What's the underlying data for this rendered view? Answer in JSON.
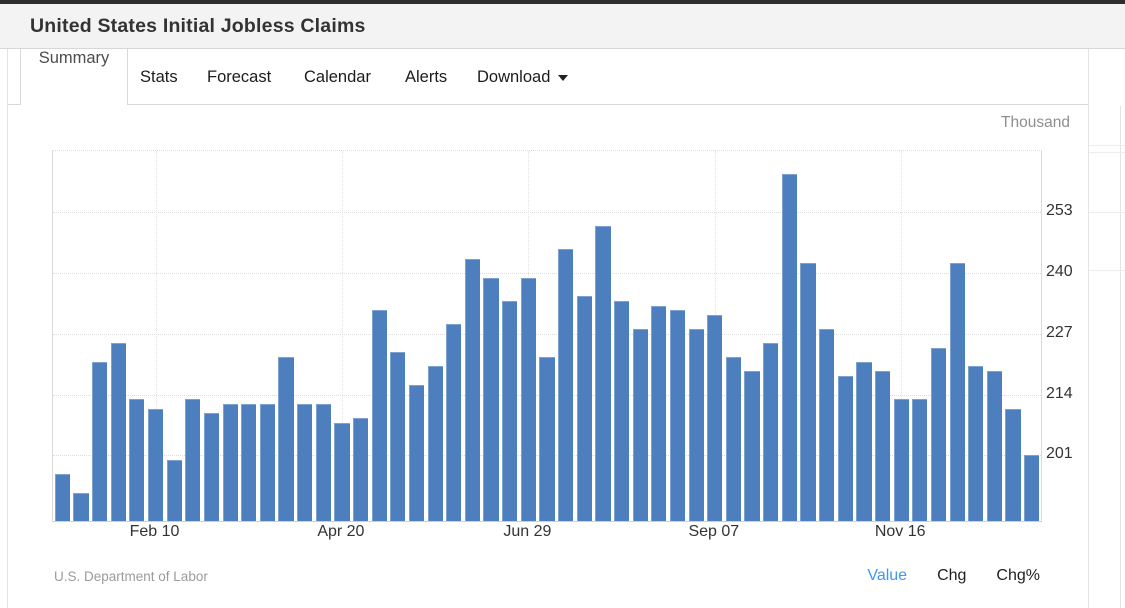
{
  "header": {
    "title": "United States Initial Jobless Claims"
  },
  "tabs": [
    {
      "label": "Summary",
      "active": true
    },
    {
      "label": "Stats",
      "active": false
    },
    {
      "label": "Forecast",
      "active": false
    },
    {
      "label": "Calendar",
      "active": false
    },
    {
      "label": "Alerts",
      "active": false
    },
    {
      "label": "Download",
      "active": false,
      "dropdown": true
    }
  ],
  "chart_data": {
    "type": "bar",
    "title": "United States Initial Jobless Claims",
    "unit_label": "Thousand",
    "source": "U.S. Department of Labor",
    "categories_note": "weekly bars, tick labels every 10 weeks",
    "x_tick_labels": [
      "Feb 10",
      "Apr 20",
      "Jun 29",
      "Sep 07",
      "Nov 16"
    ],
    "x_tick_indices": [
      5,
      15,
      25,
      35,
      45
    ],
    "y_ticks": [
      201,
      214,
      227,
      240,
      253
    ],
    "ylim": [
      187,
      266
    ],
    "grid": true,
    "legend_position": "none",
    "bar_color": "#4d7ebd",
    "values": [
      197,
      193,
      221,
      225,
      213,
      211,
      200,
      213,
      210,
      212,
      212,
      212,
      222,
      212,
      212,
      208,
      209,
      232,
      223,
      216,
      220,
      229,
      243,
      239,
      234,
      239,
      222,
      245,
      235,
      250,
      234,
      228,
      233,
      232,
      228,
      231,
      222,
      219,
      225,
      261,
      242,
      228,
      218,
      221,
      219,
      213,
      213,
      224,
      242,
      220,
      219,
      211,
      201
    ]
  },
  "footer": {
    "source": "U.S. Department of Labor",
    "modes": [
      {
        "label": "Value",
        "active": true
      },
      {
        "label": "Chg",
        "active": false
      },
      {
        "label": "Chg%",
        "active": false
      }
    ]
  },
  "colors": {
    "accent_blue": "#3e97f5",
    "bar": "#4d7ebd",
    "header_bg": "#f3f3f3",
    "top_strip": "#2e2e2e"
  }
}
